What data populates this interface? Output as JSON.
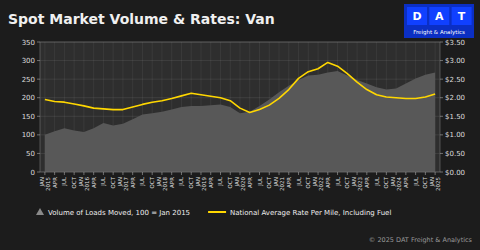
{
  "chart_data": {
    "type": "line",
    "title": "Spot Market Volume & Rates: Van",
    "categories": [
      "JAN\n2015",
      "APR",
      "JUL",
      "OCT",
      "JAN\n2016",
      "APR",
      "JUL",
      "OCT",
      "JAN\n2017",
      "APR",
      "JUL",
      "OCT",
      "JAN\n2018",
      "APR",
      "JUL",
      "OCT",
      "JAN\n2019",
      "APR",
      "JUL",
      "OCT",
      "JAN\n2020",
      "APR",
      "JUL",
      "OCT",
      "JAN\n2021",
      "APR",
      "JUL",
      "OCT",
      "JAN\n2022",
      "APR",
      "JUL",
      "OCT",
      "JAN\n2023",
      "APR",
      "JUL",
      "OCT",
      "JAN\n2024",
      "APR",
      "JUL",
      "OCT",
      "JAN\n2025"
    ],
    "series": [
      {
        "name": "Volume of Loads Moved, 100 = Jan 2015",
        "type": "area",
        "color": "#585858",
        "values": [
          100,
          110,
          118,
          112,
          108,
          118,
          132,
          125,
          130,
          142,
          155,
          158,
          162,
          168,
          175,
          178,
          178,
          180,
          182,
          175,
          158,
          162,
          178,
          195,
          215,
          232,
          248,
          260,
          262,
          268,
          272,
          260,
          248,
          238,
          228,
          222,
          225,
          238,
          252,
          262,
          268
        ]
      },
      {
        "name": "National Average Rate Per Mile, Including Fuel",
        "type": "line",
        "axis": "y2",
        "color": "#FFD700",
        "values": [
          1.95,
          1.9,
          1.88,
          1.83,
          1.78,
          1.72,
          1.7,
          1.68,
          1.68,
          1.75,
          1.82,
          1.88,
          1.92,
          1.98,
          2.05,
          2.12,
          2.08,
          2.04,
          2.0,
          1.92,
          1.72,
          1.6,
          1.68,
          1.8,
          1.98,
          2.22,
          2.52,
          2.7,
          2.78,
          2.95,
          2.85,
          2.65,
          2.42,
          2.22,
          2.08,
          2.02,
          2.0,
          1.98,
          1.98,
          2.02,
          2.1
        ]
      }
    ],
    "ylim": [
      0,
      350
    ],
    "yticks": [
      0,
      50,
      100,
      150,
      200,
      250,
      300,
      350
    ],
    "y2lim": [
      0.0,
      3.5
    ],
    "y2ticks": [
      {
        "value": 0.0,
        "label": "$0.00"
      },
      {
        "value": 0.5,
        "label": "$0.50"
      },
      {
        "value": 1.0,
        "label": "$1.00"
      },
      {
        "value": 1.5,
        "label": "$1.50"
      },
      {
        "value": 2.0,
        "label": "$2.00"
      },
      {
        "value": 2.5,
        "label": "$2.50"
      },
      {
        "value": 3.0,
        "label": "$3.00"
      },
      {
        "value": 3.5,
        "label": "$3.50"
      }
    ],
    "grid": true,
    "legend": "bottom",
    "annotations": [
      "D",
      "A",
      "T",
      "Freight & Analytics",
      "© 2025 DAT Freight & Analytics"
    ]
  }
}
